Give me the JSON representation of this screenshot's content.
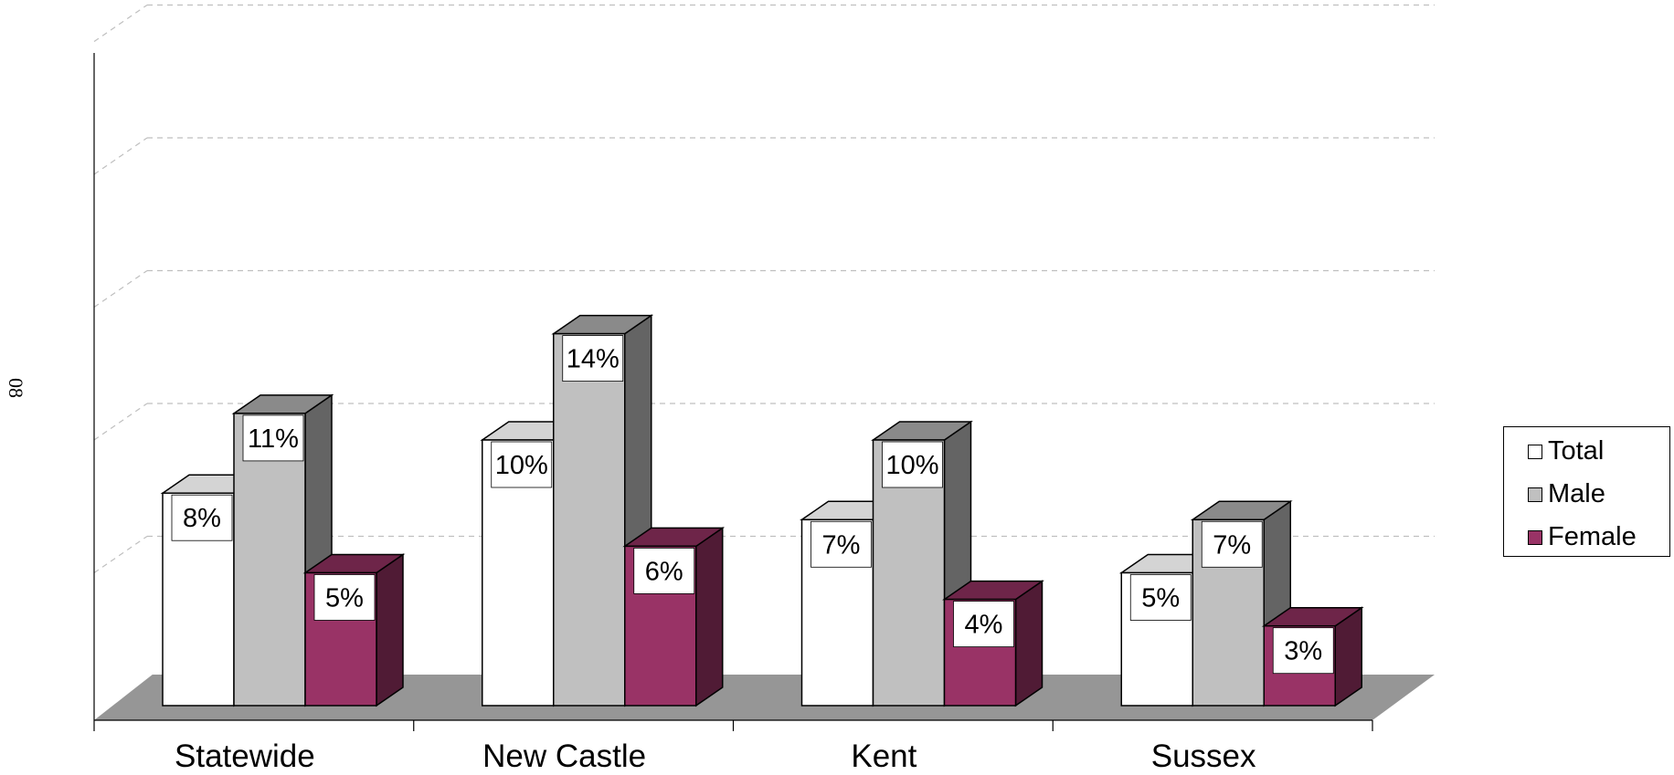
{
  "side_label": "08",
  "chart_data": {
    "type": "bar",
    "categories": [
      "Statewide",
      "New Castle",
      "Kent",
      "Sussex"
    ],
    "series": [
      {
        "name": "Total",
        "values": [
          8,
          10,
          7,
          5
        ],
        "labels": [
          "8%",
          "10%",
          "7%",
          "5%"
        ],
        "color": "#ffffff"
      },
      {
        "name": "Male",
        "values": [
          11,
          14,
          10,
          7
        ],
        "labels": [
          "11%",
          "14%",
          "10%",
          "7%"
        ],
        "color": "#c0c0c0"
      },
      {
        "name": "Female",
        "values": [
          5,
          6,
          4,
          3
        ],
        "labels": [
          "5%",
          "6%",
          "4%",
          "3%"
        ],
        "color": "#993366"
      }
    ],
    "ylim": [
      0,
      25
    ],
    "grid": true,
    "legend_position": "right",
    "three_d": true
  }
}
